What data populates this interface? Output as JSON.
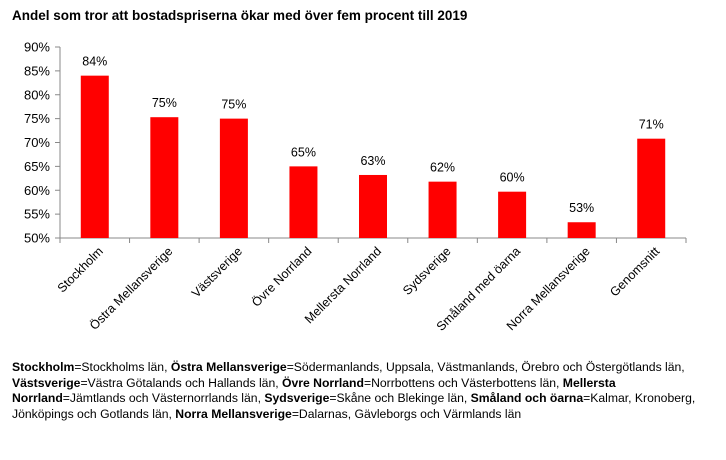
{
  "chart_data": {
    "type": "bar",
    "title": "Andel som tror att bostadspriserna ökar med över fem procent till 2019",
    "xlabel": "",
    "ylabel": "",
    "categories": [
      "Stockholm",
      "Östra Mellansverige",
      "Västsverige",
      "Övre Norrland",
      "Mellersta Norrland",
      "Sydsverige",
      "Småland med öarna",
      "Norra Mellansverige",
      "Genomsnitt"
    ],
    "values": [
      84,
      75.3,
      75,
      65,
      63.2,
      61.8,
      59.7,
      53.3,
      70.8
    ],
    "data_labels": [
      "84%",
      "75%",
      "75%",
      "65%",
      "63%",
      "62%",
      "60%",
      "53%",
      "71%"
    ],
    "ylim": [
      50,
      90
    ],
    "yticks": [
      "50%",
      "55%",
      "60%",
      "65%",
      "70%",
      "75%",
      "80%",
      "85%",
      "90%"
    ],
    "bar_color": "#ff0000",
    "grid": false,
    "legend": "none"
  },
  "footnote": [
    {
      "term": "Stockholm",
      "text": "=Stockholms län, "
    },
    {
      "term": "Östra Mellansverige",
      "text": "=Södermanlands, Uppsala, Västmanlands, Örebro och Östergötlands län, "
    },
    {
      "term": "Västsverige",
      "text": "=Västra Götalands och Hallands län, "
    },
    {
      "term": "Övre Norrland",
      "text": "=Norrbottens och Västerbottens län, "
    },
    {
      "term": "Mellersta Norrland",
      "text": "=Jämtlands och Västernorrlands län, "
    },
    {
      "term": "Sydsverige",
      "text": "=Skåne och Blekinge län, "
    },
    {
      "term": "Småland och öarna",
      "text": "=Kalmar, Kronoberg, Jönköpings och Gotlands län, "
    },
    {
      "term": "Norra Mellansverige",
      "text": "=Dalarnas, Gävleborgs och Värmlands län"
    }
  ]
}
